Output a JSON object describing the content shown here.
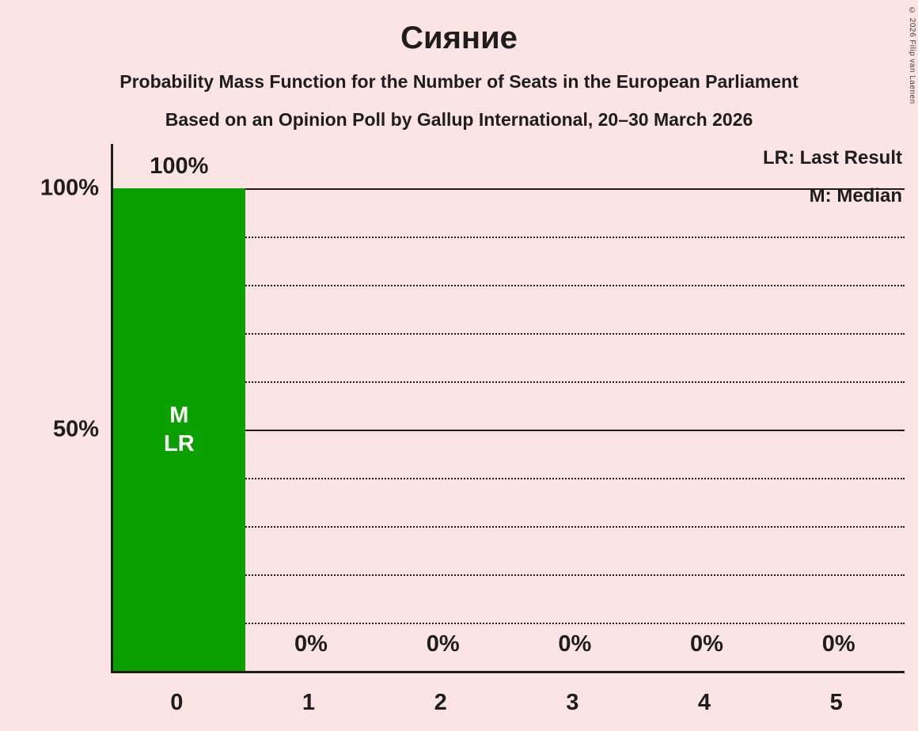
{
  "page": {
    "background": "#fce4e4",
    "text_color": "#1d1d1d",
    "copyright": "© 2026 Filip van Laenen"
  },
  "header": {
    "title": "Сияние",
    "subtitle_line1": "Probability Mass Function for the Number of Seats in the European Parliament",
    "subtitle_line2": "Based on an Opinion Poll by Gallup International, 20–30 March 2026"
  },
  "chart_data": {
    "type": "bar",
    "title": "Сияние",
    "xlabel": "",
    "ylabel": "",
    "categories": [
      "0",
      "1",
      "2",
      "3",
      "4",
      "5"
    ],
    "values": [
      100,
      0,
      0,
      0,
      0,
      0
    ],
    "value_labels": [
      "100%",
      "0%",
      "0%",
      "0%",
      "0%",
      "0%"
    ],
    "bar_annotations": [
      [
        "M",
        "LR"
      ],
      [],
      [],
      [],
      [],
      []
    ],
    "bar_color": "#0aa000",
    "ylim": [
      0,
      100
    ],
    "yticks": [
      {
        "value": 100,
        "label": "100%"
      },
      {
        "value": 50,
        "label": "50%"
      }
    ],
    "gridlines": {
      "solid": [
        100,
        50
      ],
      "dotted": [
        90,
        80,
        70,
        60,
        40,
        30,
        20,
        10
      ]
    },
    "grid": true,
    "legend_position": "top-right",
    "legend_entries": [
      "LR: Last Result",
      "M: Median"
    ]
  }
}
